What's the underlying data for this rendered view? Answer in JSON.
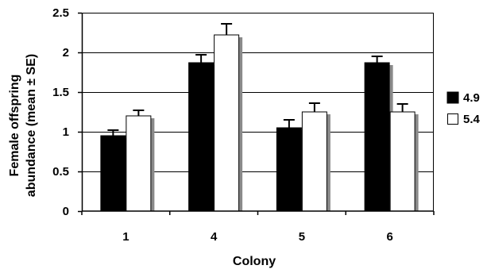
{
  "chart_data": {
    "type": "bar",
    "categories": [
      "1",
      "4",
      "5",
      "6"
    ],
    "series": [
      {
        "name": "4.9",
        "values": [
          0.95,
          1.87,
          1.05,
          1.87
        ],
        "errors": [
          0.07,
          0.1,
          0.1,
          0.08
        ],
        "color": "#000000"
      },
      {
        "name": "5.4",
        "values": [
          1.2,
          2.22,
          1.25,
          1.25
        ],
        "errors": [
          0.07,
          0.14,
          0.11,
          0.1
        ],
        "color": "#ffffff"
      }
    ],
    "xlabel": "Colony",
    "ylabel_lines": [
      "Female offspring",
      "abundance (mean ± SE)"
    ],
    "ylim": [
      0,
      2.5
    ],
    "yticks": [
      "0",
      "0.5",
      "1",
      "1.5",
      "2",
      "2.5"
    ],
    "grid": true,
    "legend_position": "right"
  }
}
